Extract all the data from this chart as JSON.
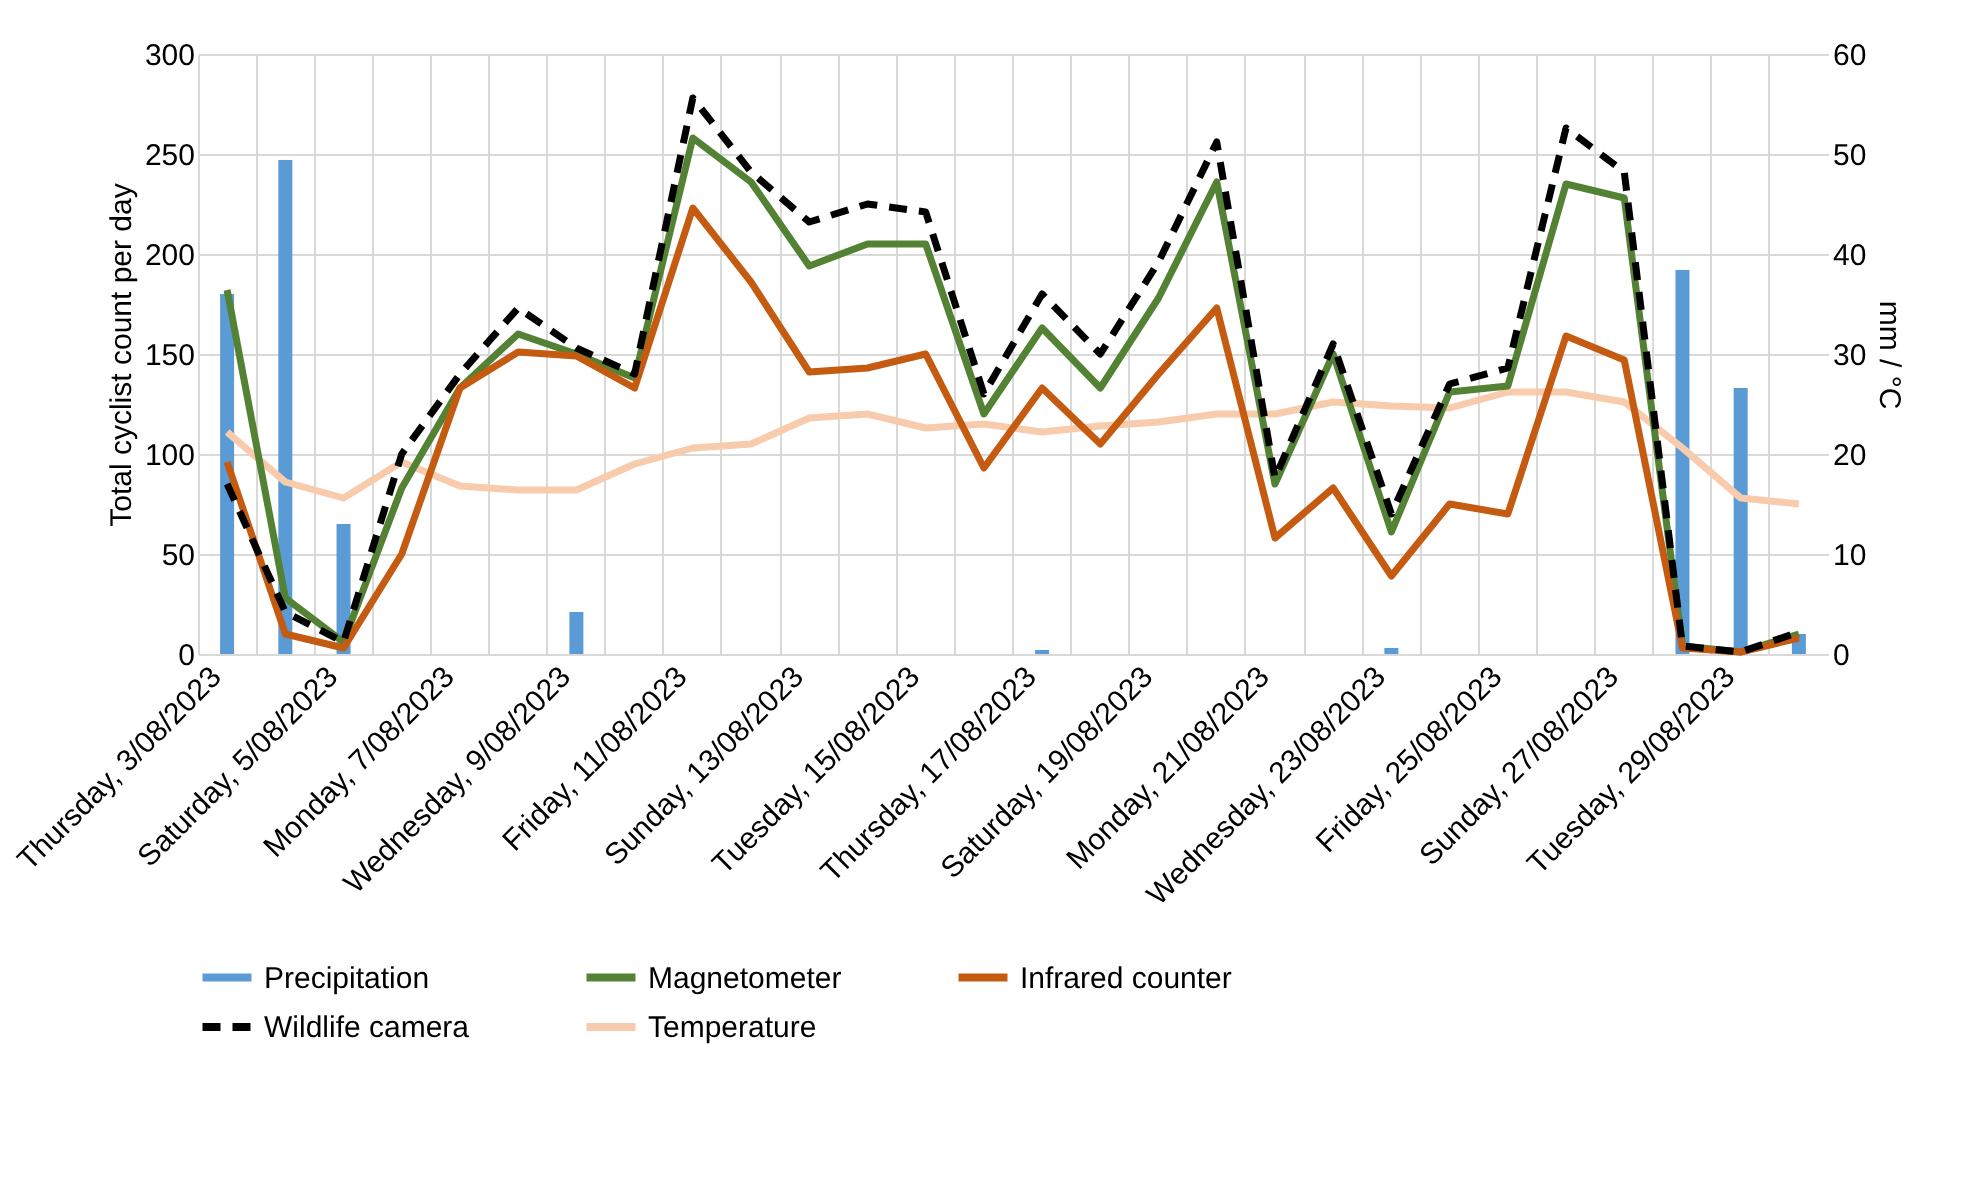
{
  "chart_data": {
    "type": "line",
    "categories": [
      "Thursday, 3/08/2023",
      null,
      "Saturday, 5/08/2023",
      null,
      "Monday, 7/08/2023",
      null,
      "Wednesday, 9/08/2023",
      null,
      "Friday, 11/08/2023",
      null,
      "Sunday, 13/08/2023",
      null,
      "Tuesday, 15/08/2023",
      null,
      "Thursday, 17/08/2023",
      null,
      "Saturday, 19/08/2023",
      null,
      "Monday, 21/08/2023",
      null,
      "Wednesday, 23/08/2023",
      null,
      "Friday, 25/08/2023",
      null,
      "Sunday, 27/08/2023",
      null,
      "Tuesday, 29/08/2023",
      null
    ],
    "ylabel": "Total cyclist count per day",
    "y2label": "mm / °C",
    "ylim": [
      0,
      300
    ],
    "yticks": [
      0,
      50,
      100,
      150,
      200,
      250,
      300
    ],
    "y2lim": [
      0,
      60
    ],
    "y2ticks": [
      0,
      10,
      20,
      30,
      40,
      50,
      60
    ],
    "grid": true,
    "legend": "bottom",
    "series": [
      {
        "name": "Precipitation",
        "type": "bar",
        "axis": "y2",
        "color": "#5b9bd5",
        "values": [
          36,
          49.4,
          13,
          0,
          0,
          0,
          4.2,
          0,
          0,
          0,
          0,
          0,
          0,
          0,
          0.4,
          0,
          0,
          0,
          0,
          0,
          0.6,
          0,
          0,
          0,
          0,
          38.4,
          26.6,
          2
        ]
      },
      {
        "name": "Magnetometer",
        "color": "#548235",
        "line_style": "solid",
        "values": [
          182,
          28,
          6,
          83,
          133,
          160,
          150,
          138,
          258,
          236,
          194,
          205,
          205,
          120,
          163,
          133,
          178,
          236,
          85,
          150,
          61,
          131,
          134,
          235,
          228,
          4,
          1,
          10
        ]
      },
      {
        "name": "Infrared counter",
        "color": "#c55a11",
        "line_style": "solid",
        "values": [
          96,
          10,
          3,
          50,
          133,
          151,
          149,
          133,
          223,
          186,
          141,
          143,
          150,
          93,
          133,
          105,
          140,
          173,
          58,
          83,
          39,
          75,
          70,
          159,
          147,
          3,
          1,
          8
        ]
      },
      {
        "name": "Wildlife camera",
        "color": "#000000",
        "line_style": "dashed",
        "values": [
          85,
          21,
          6,
          100,
          140,
          173,
          153,
          140,
          278,
          241,
          216,
          225,
          221,
          130,
          180,
          150,
          196,
          256,
          88,
          155,
          70,
          135,
          143,
          263,
          241,
          4,
          1,
          11
        ]
      },
      {
        "name": "Temperature",
        "axis": "y2",
        "color": "#f8cbad",
        "line_style": "solid",
        "values": [
          22.2,
          17.2,
          15.6,
          19.2,
          16.8,
          16.4,
          16.4,
          19,
          20.6,
          21,
          23.6,
          24,
          22.6,
          23,
          22.2,
          22.8,
          23.2,
          24,
          24,
          25.2,
          24.8,
          24.6,
          26.2,
          26.2,
          25.2,
          20.6,
          15.6,
          15
        ]
      }
    ]
  }
}
